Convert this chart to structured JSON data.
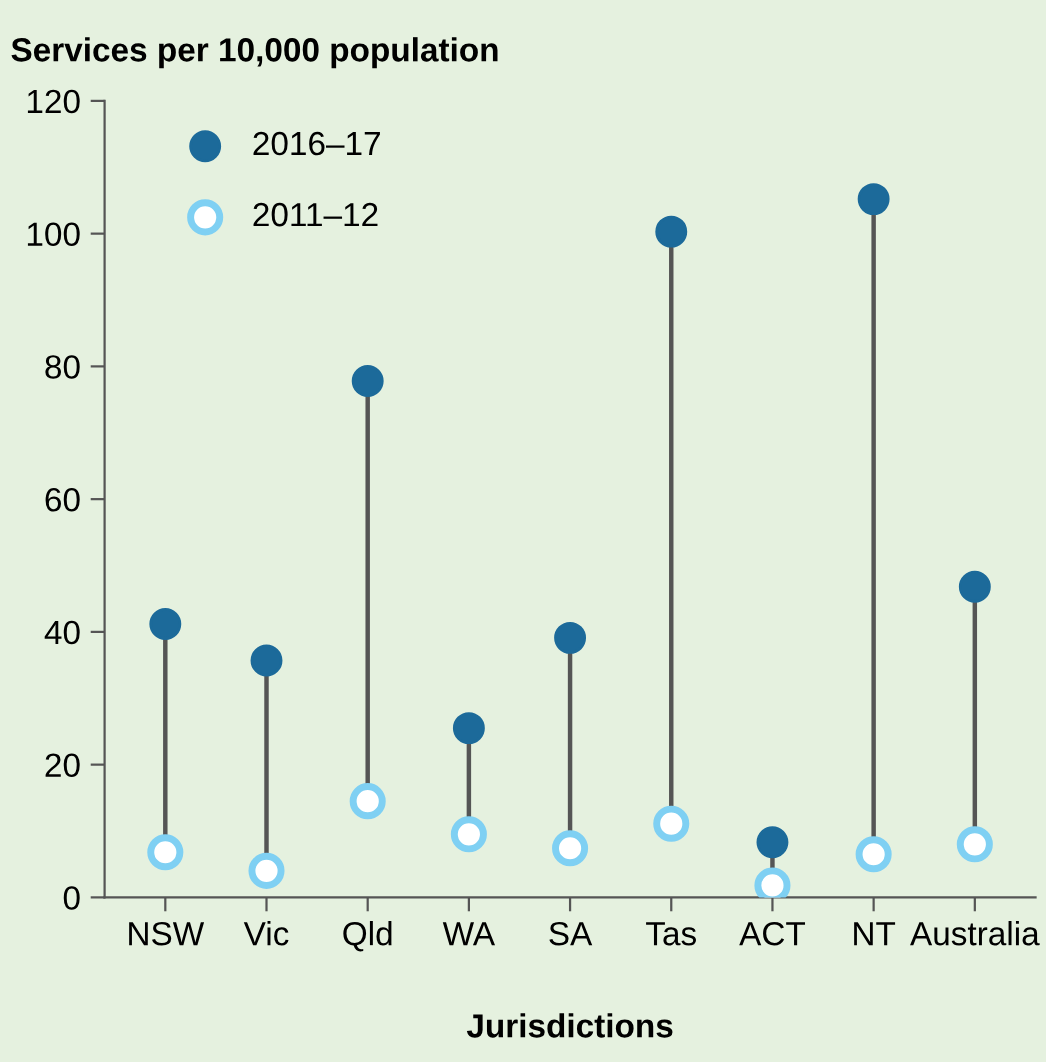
{
  "chart_data": {
    "type": "scatter",
    "title": "Services per 10,000 population",
    "xlabel": "Jurisdictions",
    "categories": [
      "NSW",
      "Vic",
      "Qld",
      "WA",
      "SA",
      "Tas",
      "ACT",
      "NT",
      "Australia"
    ],
    "series": [
      {
        "name": "2016–17",
        "color": "#1c6a9a",
        "values": [
          41.2,
          35.7,
          77.8,
          25.5,
          39.1,
          100.3,
          8.3,
          105.2,
          46.8
        ]
      },
      {
        "name": "2011–12",
        "color": "#7fd0f3",
        "values": [
          6.8,
          4.0,
          14.5,
          9.5,
          7.4,
          11.1,
          1.8,
          6.5,
          8.0
        ]
      }
    ],
    "ylim": [
      0,
      120
    ],
    "yticks": [
      0,
      20,
      40,
      60,
      80,
      100,
      120
    ],
    "grid": false,
    "legend": "top left",
    "marker": "circle"
  }
}
